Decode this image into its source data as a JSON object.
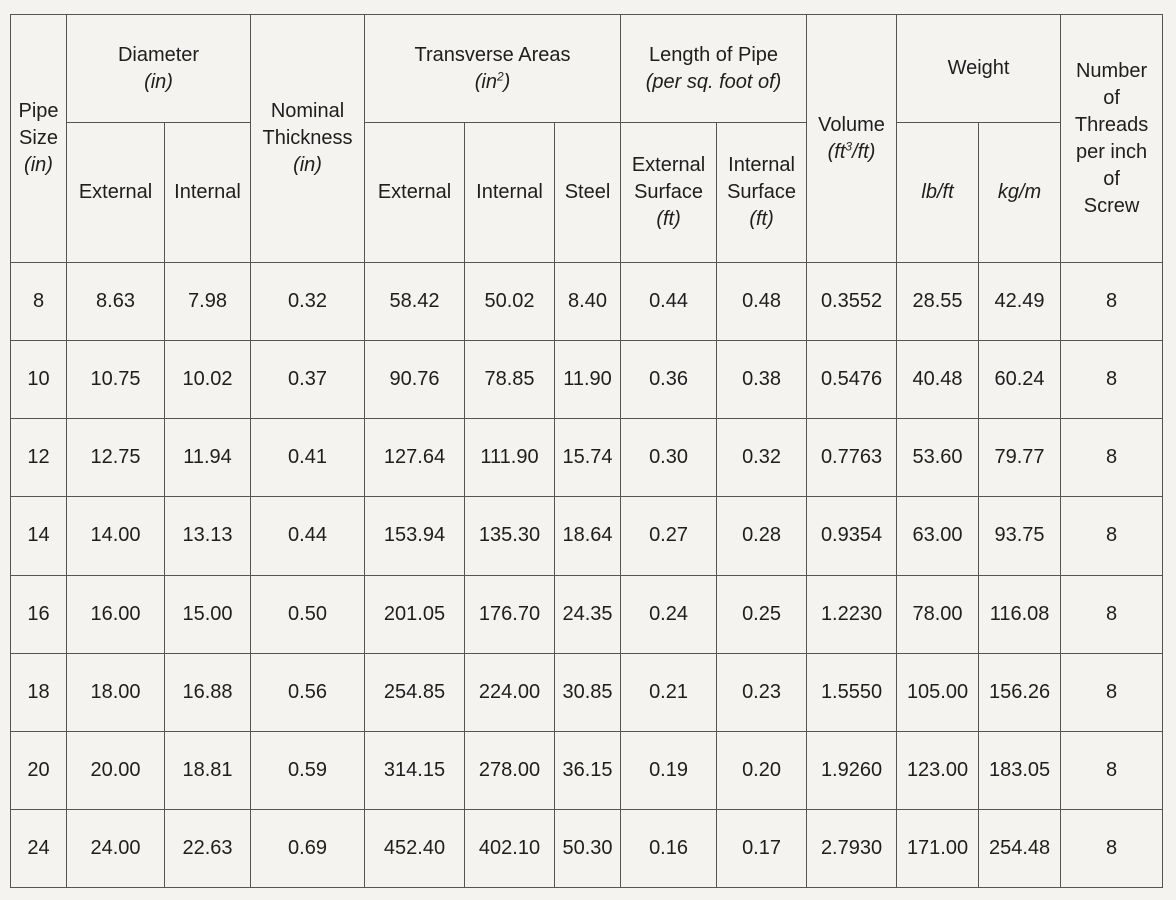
{
  "table": {
    "header": {
      "pipe_size": {
        "l1": "Pipe",
        "l2": "Size",
        "unit": "(in)"
      },
      "diameter": {
        "title": "Diameter",
        "unit": "(in)",
        "external": "External",
        "internal": "Internal"
      },
      "nominal_thickness": {
        "l1": "Nominal",
        "l2": "Thickness",
        "unit": "(in)"
      },
      "transverse_areas": {
        "title": "Transverse Areas",
        "unit_pre": "(in",
        "unit_sup": "2",
        "unit_post": ")",
        "external": "External",
        "internal": "Internal",
        "steel": "Steel"
      },
      "length_of_pipe": {
        "title": "Length of Pipe",
        "sub": "(per sq. foot of)",
        "external": {
          "l1": "External",
          "l2": "Surface",
          "unit": "(ft)"
        },
        "internal": {
          "l1": "Internal",
          "l2": "Surface",
          "unit": "(ft)"
        }
      },
      "volume": {
        "title": "Volume",
        "unit_pre": "(ft",
        "unit_sup": "3",
        "unit_post": "/ft)"
      },
      "weight": {
        "title": "Weight",
        "lbft": "lb/ft",
        "kgm": "kg/m"
      },
      "threads": {
        "l1": "Number",
        "l2": "of",
        "l3": "Threads",
        "l4": "per inch",
        "l5": "of",
        "l6": "Screw"
      }
    },
    "rows": [
      [
        "8",
        "8.63",
        "7.98",
        "0.32",
        "58.42",
        "50.02",
        "8.40",
        "0.44",
        "0.48",
        "0.3552",
        "28.55",
        "42.49",
        "8"
      ],
      [
        "10",
        "10.75",
        "10.02",
        "0.37",
        "90.76",
        "78.85",
        "11.90",
        "0.36",
        "0.38",
        "0.5476",
        "40.48",
        "60.24",
        "8"
      ],
      [
        "12",
        "12.75",
        "11.94",
        "0.41",
        "127.64",
        "111.90",
        "15.74",
        "0.30",
        "0.32",
        "0.7763",
        "53.60",
        "79.77",
        "8"
      ],
      [
        "14",
        "14.00",
        "13.13",
        "0.44",
        "153.94",
        "135.30",
        "18.64",
        "0.27",
        "0.28",
        "0.9354",
        "63.00",
        "93.75",
        "8"
      ],
      [
        "16",
        "16.00",
        "15.00",
        "0.50",
        "201.05",
        "176.70",
        "24.35",
        "0.24",
        "0.25",
        "1.2230",
        "78.00",
        "116.08",
        "8"
      ],
      [
        "18",
        "18.00",
        "16.88",
        "0.56",
        "254.85",
        "224.00",
        "30.85",
        "0.21",
        "0.23",
        "1.5550",
        "105.00",
        "156.26",
        "8"
      ],
      [
        "20",
        "20.00",
        "18.81",
        "0.59",
        "314.15",
        "278.00",
        "36.15",
        "0.19",
        "0.20",
        "1.9260",
        "123.00",
        "183.05",
        "8"
      ],
      [
        "24",
        "24.00",
        "22.63",
        "0.69",
        "452.40",
        "402.10",
        "50.30",
        "0.16",
        "0.17",
        "2.7930",
        "171.00",
        "254.48",
        "8"
      ]
    ]
  }
}
